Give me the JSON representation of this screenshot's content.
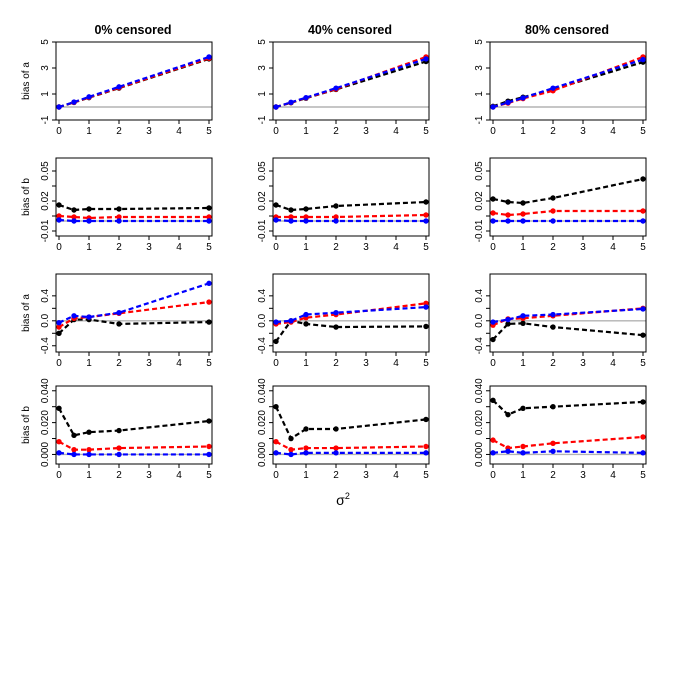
{
  "figure": {
    "column_titles": [
      "0% censored",
      "40% censored",
      "80% censored"
    ],
    "row_ylabels": [
      "bias of a",
      "bias of b",
      "bias of a",
      "bias of b"
    ],
    "xlabel_base": "σ",
    "xlabel_exp": "2",
    "colors": {
      "black": "#000000",
      "red": "#ff0000",
      "blue": "#0000ff",
      "reference": "#b3b3b3"
    }
  },
  "chart_data": [
    {
      "type": "line",
      "row": 0,
      "col": 0,
      "title": "0% censored",
      "ylabel": "bias of a",
      "x": [
        0,
        0.5,
        1,
        2,
        5
      ],
      "xlim": [
        -0.1,
        5.1
      ],
      "xticks": [
        0,
        1,
        2,
        3,
        4,
        5
      ],
      "ylim": [
        -1,
        5
      ],
      "yticks": [
        -1,
        1,
        3,
        5
      ],
      "yticks_minor": [],
      "reference_y": 0,
      "series": [
        {
          "color": "black",
          "values": [
            0.0,
            0.35,
            0.72,
            1.45,
            3.7
          ]
        },
        {
          "color": "red",
          "values": [
            0.0,
            0.36,
            0.74,
            1.48,
            3.75
          ]
        },
        {
          "color": "blue",
          "values": [
            0.0,
            0.38,
            0.78,
            1.55,
            3.85
          ]
        }
      ]
    },
    {
      "type": "line",
      "row": 0,
      "col": 1,
      "title": "40% censored",
      "ylabel": "",
      "x": [
        0,
        0.5,
        1,
        2,
        5
      ],
      "xlim": [
        -0.1,
        5.1
      ],
      "xticks": [
        0,
        1,
        2,
        3,
        4,
        5
      ],
      "ylim": [
        -1,
        5
      ],
      "yticks": [
        -1,
        1,
        3,
        5
      ],
      "yticks_minor": [],
      "reference_y": 0,
      "series": [
        {
          "color": "black",
          "values": [
            0.0,
            0.33,
            0.68,
            1.35,
            3.5
          ]
        },
        {
          "color": "red",
          "values": [
            0.0,
            0.34,
            0.7,
            1.38,
            3.85
          ]
        },
        {
          "color": "blue",
          "values": [
            0.0,
            0.36,
            0.72,
            1.45,
            3.7
          ]
        }
      ]
    },
    {
      "type": "line",
      "row": 0,
      "col": 2,
      "title": "80% censored",
      "ylabel": "",
      "x": [
        0,
        0.5,
        1,
        2,
        5
      ],
      "xlim": [
        -0.1,
        5.1
      ],
      "xticks": [
        0,
        1,
        2,
        3,
        4,
        5
      ],
      "ylim": [
        -1,
        5
      ],
      "yticks": [
        -1,
        1,
        3,
        5
      ],
      "yticks_minor": [],
      "reference_y": 0,
      "series": [
        {
          "color": "black",
          "values": [
            0.05,
            0.45,
            0.75,
            1.35,
            3.45
          ]
        },
        {
          "color": "red",
          "values": [
            0.0,
            0.3,
            0.65,
            1.25,
            3.85
          ]
        },
        {
          "color": "blue",
          "values": [
            0.0,
            0.35,
            0.7,
            1.45,
            3.65
          ]
        }
      ]
    },
    {
      "type": "line",
      "row": 1,
      "col": 0,
      "title": "",
      "ylabel": "bias of b",
      "x": [
        0,
        0.5,
        1,
        2,
        5
      ],
      "xlim": [
        -0.1,
        5.1
      ],
      "xticks": [
        0,
        1,
        2,
        3,
        4,
        5
      ],
      "ylim": [
        -0.015,
        0.063
      ],
      "yticks": [
        -0.01,
        0.02,
        0.05
      ],
      "yticks_minor": [
        0.005,
        0.035
      ],
      "reference_y": 0,
      "series": [
        {
          "color": "black",
          "values": [
            0.016,
            0.011,
            0.012,
            0.012,
            0.013
          ]
        },
        {
          "color": "red",
          "values": [
            0.005,
            0.004,
            0.003,
            0.004,
            0.004
          ]
        },
        {
          "color": "blue",
          "values": [
            0.001,
            0.0,
            0.0,
            0.0,
            0.0
          ]
        }
      ]
    },
    {
      "type": "line",
      "row": 1,
      "col": 1,
      "title": "",
      "ylabel": "",
      "x": [
        0,
        0.5,
        1,
        2,
        5
      ],
      "xlim": [
        -0.1,
        5.1
      ],
      "xticks": [
        0,
        1,
        2,
        3,
        4,
        5
      ],
      "ylim": [
        -0.015,
        0.063
      ],
      "yticks": [
        -0.01,
        0.02,
        0.05
      ],
      "yticks_minor": [
        0.005,
        0.035
      ],
      "reference_y": 0,
      "series": [
        {
          "color": "black",
          "values": [
            0.016,
            0.011,
            0.012,
            0.015,
            0.019
          ]
        },
        {
          "color": "red",
          "values": [
            0.004,
            0.004,
            0.004,
            0.004,
            0.006
          ]
        },
        {
          "color": "blue",
          "values": [
            0.001,
            0.0,
            0.0,
            0.0,
            0.0
          ]
        }
      ]
    },
    {
      "type": "line",
      "row": 1,
      "col": 2,
      "title": "",
      "ylabel": "",
      "x": [
        0,
        0.5,
        1,
        2,
        5
      ],
      "xlim": [
        -0.1,
        5.1
      ],
      "xticks": [
        0,
        1,
        2,
        3,
        4,
        5
      ],
      "ylim": [
        -0.015,
        0.063
      ],
      "yticks": [
        -0.01,
        0.02,
        0.05
      ],
      "yticks_minor": [
        0.005,
        0.035
      ],
      "reference_y": 0,
      "series": [
        {
          "color": "black",
          "values": [
            0.022,
            0.019,
            0.018,
            0.023,
            0.042
          ]
        },
        {
          "color": "red",
          "values": [
            0.008,
            0.006,
            0.007,
            0.01,
            0.01
          ]
        },
        {
          "color": "blue",
          "values": [
            0.0,
            0.0,
            0.0,
            0.0,
            0.0
          ]
        }
      ]
    },
    {
      "type": "line",
      "row": 2,
      "col": 0,
      "title": "",
      "ylabel": "bias of a",
      "x": [
        0,
        0.5,
        1,
        2,
        5
      ],
      "xlim": [
        -0.1,
        5.1
      ],
      "xticks": [
        0,
        1,
        2,
        3,
        4,
        5
      ],
      "ylim": [
        -0.5,
        0.75
      ],
      "yticks": [
        -0.4,
        0.0,
        0.4
      ],
      "yticks_minor": [
        -0.2,
        0.2
      ],
      "reference_y": 0,
      "series": [
        {
          "color": "black",
          "values": [
            -0.2,
            0.02,
            0.02,
            -0.05,
            -0.02
          ]
        },
        {
          "color": "red",
          "values": [
            -0.1,
            0.04,
            0.06,
            0.12,
            0.3
          ]
        },
        {
          "color": "blue",
          "values": [
            -0.03,
            0.08,
            0.06,
            0.13,
            0.6
          ]
        }
      ]
    },
    {
      "type": "line",
      "row": 2,
      "col": 1,
      "title": "",
      "ylabel": "",
      "x": [
        0,
        0.5,
        1,
        2,
        5
      ],
      "xlim": [
        -0.1,
        5.1
      ],
      "xticks": [
        0,
        1,
        2,
        3,
        4,
        5
      ],
      "ylim": [
        -0.5,
        0.75
      ],
      "yticks": [
        -0.4,
        0.0,
        0.4
      ],
      "yticks_minor": [
        -0.2,
        0.2
      ],
      "reference_y": 0,
      "series": [
        {
          "color": "black",
          "values": [
            -0.33,
            0.0,
            -0.05,
            -0.1,
            -0.09
          ]
        },
        {
          "color": "red",
          "values": [
            -0.05,
            -0.02,
            0.05,
            0.1,
            0.28
          ]
        },
        {
          "color": "blue",
          "values": [
            -0.02,
            0.0,
            0.1,
            0.13,
            0.22
          ]
        }
      ]
    },
    {
      "type": "line",
      "row": 2,
      "col": 2,
      "title": "",
      "ylabel": "",
      "x": [
        0,
        0.5,
        1,
        2,
        5
      ],
      "xlim": [
        -0.1,
        5.1
      ],
      "xticks": [
        0,
        1,
        2,
        3,
        4,
        5
      ],
      "ylim": [
        -0.5,
        0.75
      ],
      "yticks": [
        -0.4,
        0.0,
        0.4
      ],
      "yticks_minor": [
        -0.2,
        0.2
      ],
      "reference_y": 0,
      "series": [
        {
          "color": "black",
          "values": [
            -0.3,
            -0.05,
            -0.04,
            -0.1,
            -0.23
          ]
        },
        {
          "color": "red",
          "values": [
            -0.07,
            0.03,
            0.04,
            0.08,
            0.2
          ]
        },
        {
          "color": "blue",
          "values": [
            -0.02,
            0.02,
            0.08,
            0.1,
            0.19
          ]
        }
      ]
    },
    {
      "type": "line",
      "row": 3,
      "col": 0,
      "title": "",
      "ylabel": "bias of b",
      "x": [
        0,
        0.5,
        1,
        2,
        5
      ],
      "xlim": [
        -0.1,
        5.1
      ],
      "xticks": [
        0,
        1,
        2,
        3,
        4,
        5
      ],
      "ylim": [
        -0.006,
        0.043
      ],
      "yticks": [
        0.0,
        0.02,
        0.04
      ],
      "yticks_minor": [
        0.01,
        0.03
      ],
      "reference_y": 0,
      "series": [
        {
          "color": "black",
          "values": [
            0.029,
            0.012,
            0.014,
            0.015,
            0.021
          ]
        },
        {
          "color": "red",
          "values": [
            0.008,
            0.003,
            0.003,
            0.004,
            0.005
          ]
        },
        {
          "color": "blue",
          "values": [
            0.001,
            0.0,
            0.0,
            0.0,
            0.0
          ]
        }
      ]
    },
    {
      "type": "line",
      "row": 3,
      "col": 1,
      "title": "",
      "ylabel": "",
      "x": [
        0,
        0.5,
        1,
        2,
        5
      ],
      "xlim": [
        -0.1,
        5.1
      ],
      "xticks": [
        0,
        1,
        2,
        3,
        4,
        5
      ],
      "ylim": [
        -0.006,
        0.043
      ],
      "yticks": [
        0.0,
        0.02,
        0.04
      ],
      "yticks_minor": [
        0.01,
        0.03
      ],
      "reference_y": 0,
      "series": [
        {
          "color": "black",
          "values": [
            0.03,
            0.01,
            0.016,
            0.016,
            0.022
          ]
        },
        {
          "color": "red",
          "values": [
            0.008,
            0.003,
            0.004,
            0.004,
            0.005
          ]
        },
        {
          "color": "blue",
          "values": [
            0.001,
            0.0,
            0.001,
            0.001,
            0.001
          ]
        }
      ]
    },
    {
      "type": "line",
      "row": 3,
      "col": 2,
      "title": "",
      "ylabel": "",
      "x": [
        0,
        0.5,
        1,
        2,
        5
      ],
      "xlim": [
        -0.1,
        5.1
      ],
      "xticks": [
        0,
        1,
        2,
        3,
        4,
        5
      ],
      "ylim": [
        -0.006,
        0.043
      ],
      "yticks": [
        0.0,
        0.02,
        0.04
      ],
      "yticks_minor": [
        0.01,
        0.03
      ],
      "reference_y": 0,
      "series": [
        {
          "color": "black",
          "values": [
            0.034,
            0.025,
            0.029,
            0.03,
            0.033
          ]
        },
        {
          "color": "red",
          "values": [
            0.009,
            0.004,
            0.005,
            0.007,
            0.011
          ]
        },
        {
          "color": "blue",
          "values": [
            0.001,
            0.002,
            0.001,
            0.002,
            0.001
          ]
        }
      ]
    }
  ]
}
